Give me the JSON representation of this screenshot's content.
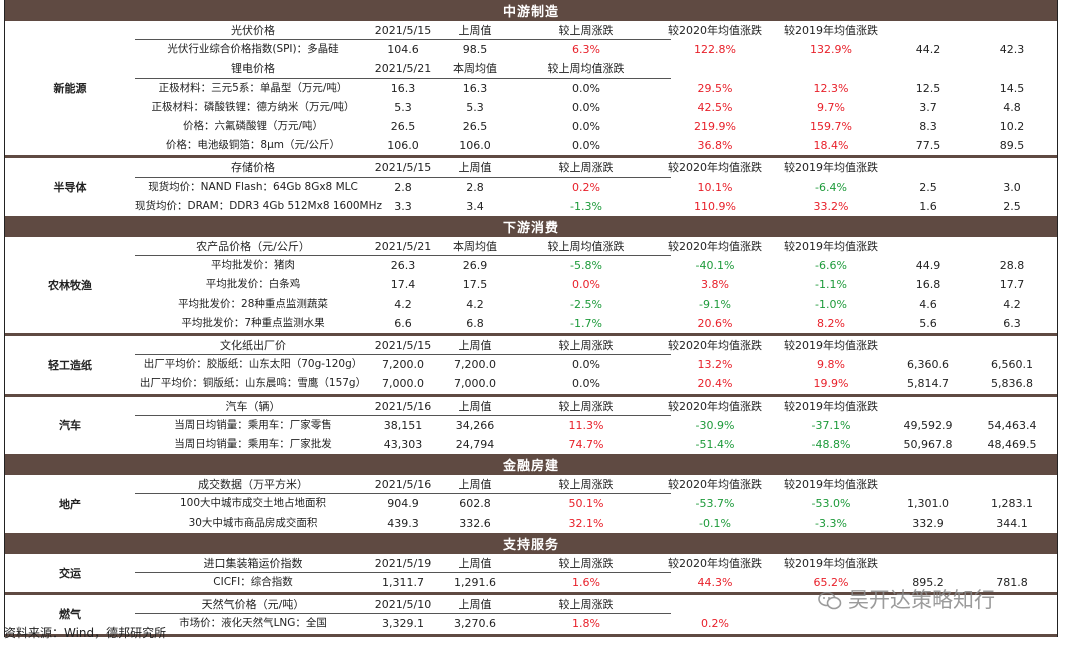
{
  "source": "资料来源：Wind，德邦研究所",
  "watermark": "吴开达策略知行",
  "colors": {
    "header_bg": "#5f4a42",
    "up": "#e8202a",
    "down": "#1d9a3a"
  },
  "sections": [
    {
      "title": "中游制造",
      "groups": [
        {
          "category": "新能源",
          "rows": [
            {
              "type": "header",
              "cells": [
                "光伏价格",
                "2021/5/15",
                "上周值",
                "较上周涨跌",
                "较2020年均值涨跌",
                "较2019年均值涨跌",
                "",
                ""
              ]
            },
            {
              "type": "data",
              "cells": [
                "光伏行业综合价格指数(SPI)：多晶硅",
                "104.6",
                "98.5",
                "6.3%",
                "122.8%",
                "132.9%",
                "44.2",
                "42.3"
              ],
              "colors": [
                "blk",
                "blk",
                "blk",
                "red",
                "red",
                "red",
                "blk",
                "blk"
              ]
            },
            {
              "type": "header",
              "cells": [
                "锂电价格",
                "2021/5/21",
                "本周均值",
                "较上周均值涨跌",
                "",
                "",
                "",
                ""
              ]
            },
            {
              "type": "data",
              "cells": [
                "正极材料：三元5系：单晶型（万元/吨）",
                "16.3",
                "16.3",
                "0.0%",
                "29.5%",
                "12.3%",
                "12.5",
                "14.5"
              ],
              "colors": [
                "blk",
                "blk",
                "blk",
                "blk",
                "red",
                "red",
                "blk",
                "blk"
              ]
            },
            {
              "type": "data",
              "cells": [
                "正极材料：磷酸铁锂：德方纳米（万元/吨）",
                "5.3",
                "5.3",
                "0.0%",
                "42.5%",
                "9.7%",
                "3.7",
                "4.8"
              ],
              "colors": [
                "blk",
                "blk",
                "blk",
                "blk",
                "red",
                "red",
                "blk",
                "blk"
              ]
            },
            {
              "type": "data",
              "cells": [
                "价格：六氟磷酸锂（万元/吨）",
                "26.5",
                "26.5",
                "0.0%",
                "219.9%",
                "159.7%",
                "8.3",
                "10.2"
              ],
              "colors": [
                "blk",
                "blk",
                "blk",
                "blk",
                "red",
                "red",
                "blk",
                "blk"
              ]
            },
            {
              "type": "data",
              "cells": [
                "价格：电池级铜箔：8μm（元/公斤）",
                "106.0",
                "106.0",
                "0.0%",
                "36.8%",
                "18.4%",
                "77.5",
                "89.5"
              ],
              "colors": [
                "blk",
                "blk",
                "blk",
                "blk",
                "red",
                "red",
                "blk",
                "blk"
              ]
            }
          ]
        },
        {
          "category": "半导体",
          "rows": [
            {
              "type": "header",
              "cells": [
                "存储价格",
                "2021/5/15",
                "上周值",
                "较上周涨跌",
                "较2020年均值涨跌",
                "较2019年均值涨跌",
                "",
                ""
              ]
            },
            {
              "type": "data",
              "cells": [
                "现货均价：NAND Flash：64Gb 8Gx8 MLC",
                "2.8",
                "2.8",
                "0.2%",
                "10.1%",
                "-6.4%",
                "2.5",
                "3.0"
              ],
              "colors": [
                "blk",
                "blk",
                "blk",
                "red",
                "red",
                "green",
                "blk",
                "blk"
              ]
            },
            {
              "type": "data",
              "cells": [
                "现货均价：DRAM：DDR3 4Gb 512Mx8 1600MHz",
                "3.3",
                "3.4",
                "-1.3%",
                "110.9%",
                "33.2%",
                "1.6",
                "2.5"
              ],
              "colors": [
                "blk",
                "blk",
                "blk",
                "green",
                "red",
                "red",
                "blk",
                "blk"
              ]
            }
          ]
        }
      ]
    },
    {
      "title": "下游消费",
      "groups": [
        {
          "category": "农林牧渔",
          "rows": [
            {
              "type": "header",
              "cells": [
                "农产品价格（元/公斤）",
                "2021/5/21",
                "本周均值",
                "较上周均值涨跌",
                "较2020年均值涨跌",
                "较2019年均值涨跌",
                "",
                ""
              ]
            },
            {
              "type": "data",
              "cells": [
                "平均批发价：猪肉",
                "26.3",
                "26.9",
                "-5.8%",
                "-40.1%",
                "-6.6%",
                "44.9",
                "28.8"
              ],
              "colors": [
                "blk",
                "blk",
                "blk",
                "green",
                "green",
                "green",
                "blk",
                "blk"
              ]
            },
            {
              "type": "data",
              "cells": [
                "平均批发价：白条鸡",
                "17.4",
                "17.5",
                "0.0%",
                "3.8%",
                "-1.1%",
                "16.8",
                "17.7"
              ],
              "colors": [
                "blk",
                "blk",
                "blk",
                "red",
                "red",
                "green",
                "blk",
                "blk"
              ]
            },
            {
              "type": "data",
              "cells": [
                "平均批发价：28种重点监测蔬菜",
                "4.2",
                "4.2",
                "-2.5%",
                "-9.1%",
                "-1.0%",
                "4.6",
                "4.2"
              ],
              "colors": [
                "blk",
                "blk",
                "blk",
                "green",
                "green",
                "green",
                "blk",
                "blk"
              ]
            },
            {
              "type": "data",
              "cells": [
                "平均批发价：7种重点监测水果",
                "6.6",
                "6.8",
                "-1.7%",
                "20.6%",
                "8.2%",
                "5.6",
                "6.3"
              ],
              "colors": [
                "blk",
                "blk",
                "blk",
                "green",
                "red",
                "red",
                "blk",
                "blk"
              ]
            }
          ]
        },
        {
          "category": "轻工造纸",
          "rows": [
            {
              "type": "header",
              "cells": [
                "文化纸出厂价",
                "2021/5/15",
                "上周值",
                "较上周涨跌",
                "较2020年均值涨跌",
                "较2019年均值涨跌",
                "",
                ""
              ]
            },
            {
              "type": "data",
              "cells": [
                "出厂平均价：胶版纸：山东太阳（70g-120g）",
                "7,200.0",
                "7,200.0",
                "0.0%",
                "13.2%",
                "9.8%",
                "6,360.6",
                "6,560.1"
              ],
              "colors": [
                "blk",
                "blk",
                "blk",
                "blk",
                "red",
                "red",
                "blk",
                "blk"
              ]
            },
            {
              "type": "data",
              "cells": [
                "出厂平均价：铜版纸：山东晨鸣：雪鹰（157g）",
                "7,000.0",
                "7,000.0",
                "0.0%",
                "20.4%",
                "19.9%",
                "5,814.7",
                "5,836.8"
              ],
              "colors": [
                "blk",
                "blk",
                "blk",
                "blk",
                "red",
                "red",
                "blk",
                "blk"
              ]
            }
          ]
        },
        {
          "category": "汽车",
          "rows": [
            {
              "type": "header",
              "cells": [
                "汽车（辆）",
                "2021/5/16",
                "上周值",
                "较上周涨跌",
                "较2020年均值涨跌",
                "较2019年均值涨跌",
                "",
                ""
              ]
            },
            {
              "type": "data",
              "cells": [
                "当周日均销量：乘用车：厂家零售",
                "38,151",
                "34,266",
                "11.3%",
                "-30.9%",
                "-37.1%",
                "49,592.9",
                "54,463.4"
              ],
              "colors": [
                "blk",
                "blk",
                "blk",
                "red",
                "green",
                "green",
                "blk",
                "blk"
              ]
            },
            {
              "type": "data",
              "cells": [
                "当周日均销量：乘用车：厂家批发",
                "43,303",
                "24,794",
                "74.7%",
                "-51.4%",
                "-48.8%",
                "50,967.8",
                "48,469.5"
              ],
              "colors": [
                "blk",
                "blk",
                "blk",
                "red",
                "green",
                "green",
                "blk",
                "blk"
              ]
            }
          ]
        }
      ]
    },
    {
      "title": "金融房建",
      "groups": [
        {
          "category": "地产",
          "rows": [
            {
              "type": "header",
              "cells": [
                "成交数据（万平方米）",
                "2021/5/16",
                "上周值",
                "较上周涨跌",
                "较2020年均值涨跌",
                "较2019年均值涨跌",
                "",
                ""
              ]
            },
            {
              "type": "data",
              "cells": [
                "100大中城市成交土地占地面积",
                "904.9",
                "602.8",
                "50.1%",
                "-53.7%",
                "-53.0%",
                "1,301.0",
                "1,283.1"
              ],
              "colors": [
                "blk",
                "blk",
                "blk",
                "red",
                "green",
                "green",
                "blk",
                "blk"
              ]
            },
            {
              "type": "data",
              "cells": [
                "30大中城市商品房成交面积",
                "439.3",
                "332.6",
                "32.1%",
                "-0.1%",
                "-3.3%",
                "332.9",
                "344.1"
              ],
              "colors": [
                "blk",
                "blk",
                "blk",
                "red",
                "green",
                "green",
                "blk",
                "blk"
              ]
            }
          ]
        }
      ]
    },
    {
      "title": "支持服务",
      "groups": [
        {
          "category": "交运",
          "rows": [
            {
              "type": "header",
              "cells": [
                "进口集装箱运价指数",
                "2021/5/19",
                "上周值",
                "较上周涨跌",
                "较2020年均值涨跌",
                "较2019年均值涨跌",
                "",
                ""
              ]
            },
            {
              "type": "data",
              "cells": [
                "CICFI：综合指数",
                "1,311.7",
                "1,291.6",
                "1.6%",
                "44.3%",
                "65.2%",
                "895.2",
                "781.8"
              ],
              "colors": [
                "blk",
                "blk",
                "blk",
                "red",
                "red",
                "red",
                "blk",
                "blk"
              ]
            }
          ]
        },
        {
          "category": "燃气",
          "rows": [
            {
              "type": "header",
              "cells": [
                "天然气价格（元/吨）",
                "2021/5/10",
                "上周值",
                "较上周涨跌",
                "",
                "",
                "",
                ""
              ]
            },
            {
              "type": "data",
              "cells": [
                "市场价：液化天然气LNG：全国",
                "3,329.1",
                "3,270.6",
                "1.8%",
                "0.2%",
                "",
                "",
                ""
              ],
              "colors": [
                "blk",
                "blk",
                "blk",
                "red",
                "red",
                "blk",
                "blk",
                "blk"
              ]
            }
          ]
        }
      ]
    }
  ]
}
